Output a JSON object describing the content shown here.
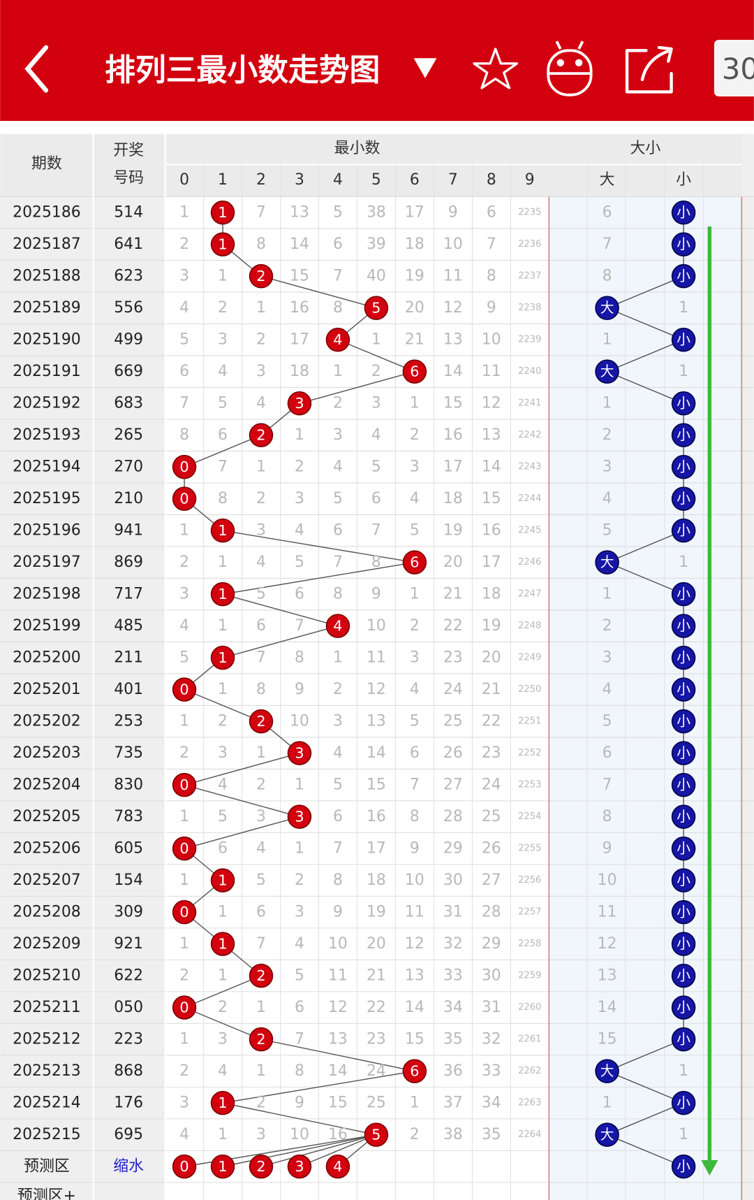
{
  "header": {
    "title": "排列三最小数走势图",
    "period_button": "30"
  },
  "table": {
    "col_issue": "期数",
    "col_number_lines": [
      "开奖",
      "号码"
    ],
    "group_min": "最小数",
    "min_digits": [
      "0",
      "1",
      "2",
      "3",
      "4",
      "5",
      "6",
      "7",
      "8",
      "9"
    ],
    "group_size": "大小",
    "size_labels": [
      "大",
      "小"
    ],
    "rows": [
      {
        "issue": "2025186",
        "number": "514",
        "cells": [
          "1",
          "1",
          "7",
          "13",
          "5",
          "38",
          "17",
          "9",
          "6",
          "2235"
        ],
        "big": "6",
        "small": "小"
      },
      {
        "issue": "2025187",
        "number": "641",
        "cells": [
          "2",
          "1",
          "8",
          "14",
          "6",
          "39",
          "18",
          "10",
          "7",
          "2236"
        ],
        "big": "7",
        "small": "小"
      },
      {
        "issue": "2025188",
        "number": "623",
        "cells": [
          "3",
          "1",
          "2",
          "15",
          "7",
          "40",
          "19",
          "11",
          "8",
          "2237"
        ],
        "big": "8",
        "small": "小"
      },
      {
        "issue": "2025189",
        "number": "556",
        "cells": [
          "4",
          "2",
          "1",
          "16",
          "8",
          "5",
          "20",
          "12",
          "9",
          "2238"
        ],
        "big": "大",
        "small": "1"
      },
      {
        "issue": "2025190",
        "number": "499",
        "cells": [
          "5",
          "3",
          "2",
          "17",
          "4",
          "1",
          "21",
          "13",
          "10",
          "2239"
        ],
        "big": "1",
        "small": "小"
      },
      {
        "issue": "2025191",
        "number": "669",
        "cells": [
          "6",
          "4",
          "3",
          "18",
          "1",
          "2",
          "6",
          "14",
          "11",
          "2240"
        ],
        "big": "大",
        "small": "1"
      },
      {
        "issue": "2025192",
        "number": "683",
        "cells": [
          "7",
          "5",
          "4",
          "3",
          "2",
          "3",
          "1",
          "15",
          "12",
          "2241"
        ],
        "big": "1",
        "small": "小"
      },
      {
        "issue": "2025193",
        "number": "265",
        "cells": [
          "8",
          "6",
          "2",
          "1",
          "3",
          "4",
          "2",
          "16",
          "13",
          "2242"
        ],
        "big": "2",
        "small": "小"
      },
      {
        "issue": "2025194",
        "number": "270",
        "cells": [
          "0",
          "7",
          "1",
          "2",
          "4",
          "5",
          "3",
          "17",
          "14",
          "2243"
        ],
        "big": "3",
        "small": "小"
      },
      {
        "issue": "2025195",
        "number": "210",
        "cells": [
          "0",
          "8",
          "2",
          "3",
          "5",
          "6",
          "4",
          "18",
          "15",
          "2244"
        ],
        "big": "4",
        "small": "小"
      },
      {
        "issue": "2025196",
        "number": "941",
        "cells": [
          "1",
          "1",
          "3",
          "4",
          "6",
          "7",
          "5",
          "19",
          "16",
          "2245"
        ],
        "big": "5",
        "small": "小"
      },
      {
        "issue": "2025197",
        "number": "869",
        "cells": [
          "2",
          "1",
          "4",
          "5",
          "7",
          "8",
          "6",
          "20",
          "17",
          "2246"
        ],
        "big": "大",
        "small": "1"
      },
      {
        "issue": "2025198",
        "number": "717",
        "cells": [
          "3",
          "1",
          "5",
          "6",
          "8",
          "9",
          "1",
          "21",
          "18",
          "2247"
        ],
        "big": "1",
        "small": "小"
      },
      {
        "issue": "2025199",
        "number": "485",
        "cells": [
          "4",
          "1",
          "6",
          "7",
          "4",
          "10",
          "2",
          "22",
          "19",
          "2248"
        ],
        "big": "2",
        "small": "小"
      },
      {
        "issue": "2025200",
        "number": "211",
        "cells": [
          "5",
          "1",
          "7",
          "8",
          "1",
          "11",
          "3",
          "23",
          "20",
          "2249"
        ],
        "big": "3",
        "small": "小"
      },
      {
        "issue": "2025201",
        "number": "401",
        "cells": [
          "0",
          "1",
          "8",
          "9",
          "2",
          "12",
          "4",
          "24",
          "21",
          "2250"
        ],
        "big": "4",
        "small": "小"
      },
      {
        "issue": "2025202",
        "number": "253",
        "cells": [
          "1",
          "2",
          "2",
          "10",
          "3",
          "13",
          "5",
          "25",
          "22",
          "2251"
        ],
        "big": "5",
        "small": "小"
      },
      {
        "issue": "2025203",
        "number": "735",
        "cells": [
          "2",
          "3",
          "1",
          "3",
          "4",
          "14",
          "6",
          "26",
          "23",
          "2252"
        ],
        "big": "6",
        "small": "小"
      },
      {
        "issue": "2025204",
        "number": "830",
        "cells": [
          "0",
          "4",
          "2",
          "1",
          "5",
          "15",
          "7",
          "27",
          "24",
          "2253"
        ],
        "big": "7",
        "small": "小"
      },
      {
        "issue": "2025205",
        "number": "783",
        "cells": [
          "1",
          "5",
          "3",
          "3",
          "6",
          "16",
          "8",
          "28",
          "25",
          "2254"
        ],
        "big": "8",
        "small": "小"
      },
      {
        "issue": "2025206",
        "number": "605",
        "cells": [
          "0",
          "6",
          "4",
          "1",
          "7",
          "17",
          "9",
          "29",
          "26",
          "2255"
        ],
        "big": "9",
        "small": "小"
      },
      {
        "issue": "2025207",
        "number": "154",
        "cells": [
          "1",
          "1",
          "5",
          "2",
          "8",
          "18",
          "10",
          "30",
          "27",
          "2256"
        ],
        "big": "10",
        "small": "小"
      },
      {
        "issue": "2025208",
        "number": "309",
        "cells": [
          "0",
          "1",
          "6",
          "3",
          "9",
          "19",
          "11",
          "31",
          "28",
          "2257"
        ],
        "big": "11",
        "small": "小"
      },
      {
        "issue": "2025209",
        "number": "921",
        "cells": [
          "1",
          "1",
          "7",
          "4",
          "10",
          "20",
          "12",
          "32",
          "29",
          "2258"
        ],
        "big": "12",
        "small": "小"
      },
      {
        "issue": "2025210",
        "number": "622",
        "cells": [
          "2",
          "1",
          "2",
          "5",
          "11",
          "21",
          "13",
          "33",
          "30",
          "2259"
        ],
        "big": "13",
        "small": "小"
      },
      {
        "issue": "2025211",
        "number": "050",
        "cells": [
          "0",
          "2",
          "1",
          "6",
          "12",
          "22",
          "14",
          "34",
          "31",
          "2260"
        ],
        "big": "14",
        "small": "小"
      },
      {
        "issue": "2025212",
        "number": "223",
        "cells": [
          "1",
          "3",
          "2",
          "7",
          "13",
          "23",
          "15",
          "35",
          "32",
          "2261"
        ],
        "big": "15",
        "small": "小"
      },
      {
        "issue": "2025213",
        "number": "868",
        "cells": [
          "2",
          "4",
          "1",
          "8",
          "14",
          "24",
          "6",
          "36",
          "33",
          "2262"
        ],
        "big": "大",
        "small": "1"
      },
      {
        "issue": "2025214",
        "number": "176",
        "cells": [
          "3",
          "1",
          "2",
          "9",
          "15",
          "25",
          "1",
          "37",
          "34",
          "2263"
        ],
        "big": "1",
        "small": "小"
      },
      {
        "issue": "2025215",
        "number": "695",
        "cells": [
          "4",
          "1",
          "3",
          "10",
          "16",
          "5",
          "2",
          "38",
          "35",
          "2264"
        ],
        "big": "大",
        "small": "1"
      }
    ],
    "prediction": {
      "label": "预测区",
      "number": "缩水",
      "circles": [
        "0",
        "1",
        "2",
        "3",
        "4"
      ],
      "small": "小"
    },
    "next_label": "预测区+"
  }
}
